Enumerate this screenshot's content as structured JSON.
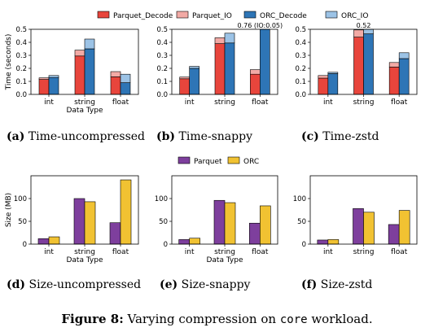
{
  "legends": {
    "time": [
      {
        "label": "Parquet_Decode",
        "color": "#e8453c"
      },
      {
        "label": "Parquet_IO",
        "color": "#f2aaa5"
      },
      {
        "label": "ORC_Decode",
        "color": "#2e75b6"
      },
      {
        "label": "ORC_IO",
        "color": "#9cc3e6"
      }
    ],
    "size": [
      {
        "label": "Parquet",
        "color": "#7e3f9d"
      },
      {
        "label": "ORC",
        "color": "#f1c232"
      }
    ]
  },
  "captions": [
    {
      "tag": "(a)",
      "text": "Time-uncompressed"
    },
    {
      "tag": "(b)",
      "text": "Time-snappy"
    },
    {
      "tag": "(c)",
      "text": "Time-zstd"
    },
    {
      "tag": "(d)",
      "text": "Size-uncompressed"
    },
    {
      "tag": "(e)",
      "text": "Size-snappy"
    },
    {
      "tag": "(f)",
      "text": "Size-zstd"
    }
  ],
  "figure_caption": {
    "label": "Figure 8:",
    "text_before": "Varying compression on",
    "code": "core",
    "text_after": "workload."
  },
  "chart_data": [
    {
      "type": "bar",
      "stacked": true,
      "categories": [
        "int",
        "string",
        "float"
      ],
      "xlabel": "Data Type",
      "ylabel": "Time (seconds)",
      "ylim": [
        0,
        0.5
      ],
      "yticks": [
        0.0,
        0.1,
        0.2,
        0.3,
        0.4,
        0.5
      ],
      "parquet_decode": [
        0.115,
        0.295,
        0.135
      ],
      "parquet_io": [
        0.012,
        0.045,
        0.04
      ],
      "orc_decode": [
        0.13,
        0.35,
        0.09
      ],
      "orc_io": [
        0.015,
        0.075,
        0.065
      ],
      "annotations": []
    },
    {
      "type": "bar",
      "stacked": true,
      "categories": [
        "int",
        "string",
        "float"
      ],
      "xlabel": "",
      "ylabel": "",
      "ylim": [
        0,
        0.5
      ],
      "yticks": [
        0.0,
        0.1,
        0.2,
        0.3,
        0.4,
        0.5
      ],
      "parquet_decode": [
        0.12,
        0.39,
        0.155
      ],
      "parquet_io": [
        0.013,
        0.045,
        0.035
      ],
      "orc_decode": [
        0.2,
        0.395,
        0.76
      ],
      "orc_io": [
        0.015,
        0.075,
        0.05
      ],
      "annotations": [
        "0.76 (IO:0.05)"
      ]
    },
    {
      "type": "bar",
      "stacked": true,
      "categories": [
        "int",
        "string",
        "float"
      ],
      "xlabel": "",
      "ylabel": "",
      "ylim": [
        0,
        0.5
      ],
      "yticks": [
        0.0,
        0.1,
        0.2,
        0.3,
        0.4,
        0.5
      ],
      "parquet_decode": [
        0.125,
        0.44,
        0.21
      ],
      "parquet_io": [
        0.02,
        0.055,
        0.035
      ],
      "orc_decode": [
        0.16,
        0.465,
        0.275
      ],
      "orc_io": [
        0.01,
        0.055,
        0.045
      ],
      "annotations": [
        "0.52"
      ]
    },
    {
      "type": "bar",
      "categories": [
        "int",
        "string",
        "float"
      ],
      "xlabel": "Data Type",
      "ylabel": "Size (MB)",
      "ylim": [
        0,
        150
      ],
      "yticks": [
        0,
        50,
        100
      ],
      "series": [
        {
          "name": "Parquet",
          "values": [
            12,
            100,
            47
          ]
        },
        {
          "name": "ORC",
          "values": [
            16,
            93,
            141
          ]
        }
      ]
    },
    {
      "type": "bar",
      "categories": [
        "int",
        "string",
        "float"
      ],
      "xlabel": "Data Type",
      "ylabel": "",
      "ylim": [
        0,
        150
      ],
      "yticks": [
        0,
        50,
        100
      ],
      "series": [
        {
          "name": "Parquet",
          "values": [
            10,
            96,
            46
          ]
        },
        {
          "name": "ORC",
          "values": [
            13,
            91,
            84
          ]
        }
      ]
    },
    {
      "type": "bar",
      "categories": [
        "int",
        "string",
        "float"
      ],
      "xlabel": "",
      "ylabel": "",
      "ylim": [
        0,
        150
      ],
      "yticks": [
        0,
        50,
        100
      ],
      "series": [
        {
          "name": "Parquet",
          "values": [
            9,
            78,
            43
          ]
        },
        {
          "name": "ORC",
          "values": [
            10,
            70,
            74
          ]
        }
      ]
    }
  ]
}
